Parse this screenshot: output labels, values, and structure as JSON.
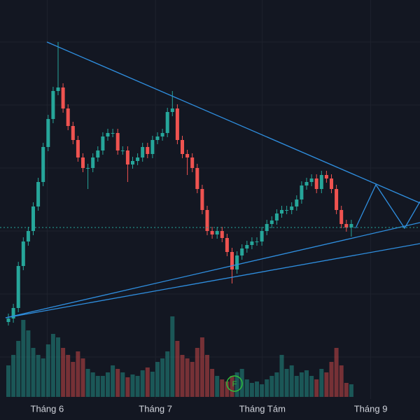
{
  "chart_data": {
    "type": "candlestick",
    "open": [
      140,
      145,
      160,
      220,
      255,
      270,
      305,
      340,
      390,
      430,
      470,
      475,
      445,
      420,
      400,
      375,
      360,
      360,
      375,
      385,
      405,
      410,
      410,
      385,
      385,
      365,
      370,
      375,
      390,
      380,
      400,
      405,
      410,
      440,
      445,
      400,
      380,
      375,
      360,
      330,
      300,
      270,
      265,
      270,
      260,
      240,
      215,
      235,
      245,
      250,
      255,
      255,
      270,
      280,
      285,
      295,
      300,
      300,
      305,
      315,
      335,
      340,
      345,
      330,
      350,
      345,
      330,
      300,
      280,
      275
    ],
    "high": [
      152,
      166,
      226,
      261,
      276,
      311,
      346,
      396,
      436,
      476,
      540,
      481,
      451,
      426,
      406,
      381,
      366,
      381,
      391,
      411,
      416,
      416,
      416,
      391,
      391,
      376,
      381,
      396,
      396,
      406,
      411,
      416,
      446,
      470,
      451,
      406,
      386,
      381,
      366,
      336,
      306,
      276,
      276,
      276,
      266,
      246,
      241,
      251,
      256,
      261,
      261,
      276,
      286,
      291,
      301,
      306,
      306,
      311,
      321,
      341,
      346,
      351,
      351,
      356,
      356,
      351,
      336,
      306,
      286,
      286
    ],
    "low": [
      135,
      139,
      154,
      214,
      249,
      264,
      299,
      334,
      384,
      424,
      464,
      439,
      414,
      394,
      369,
      354,
      330,
      354,
      369,
      379,
      399,
      404,
      379,
      379,
      340,
      359,
      364,
      369,
      374,
      374,
      394,
      399,
      404,
      434,
      394,
      374,
      350,
      354,
      324,
      294,
      264,
      259,
      259,
      254,
      234,
      195,
      209,
      229,
      239,
      244,
      249,
      249,
      264,
      274,
      279,
      289,
      294,
      294,
      299,
      309,
      329,
      334,
      324,
      324,
      339,
      324,
      294,
      274,
      269,
      262
    ],
    "close": [
      145,
      160,
      220,
      255,
      270,
      305,
      340,
      390,
      430,
      470,
      475,
      445,
      420,
      400,
      375,
      360,
      360,
      375,
      385,
      405,
      410,
      410,
      385,
      385,
      365,
      370,
      375,
      390,
      380,
      400,
      405,
      410,
      440,
      445,
      400,
      380,
      375,
      360,
      330,
      300,
      270,
      265,
      270,
      260,
      240,
      215,
      235,
      245,
      250,
      255,
      255,
      270,
      280,
      285,
      295,
      300,
      300,
      305,
      315,
      335,
      340,
      345,
      330,
      350,
      345,
      330,
      300,
      280,
      275,
      280
    ],
    "volume": [
      45,
      60,
      80,
      110,
      95,
      70,
      60,
      55,
      75,
      90,
      85,
      70,
      60,
      50,
      65,
      55,
      40,
      35,
      30,
      30,
      35,
      45,
      40,
      35,
      28,
      32,
      30,
      38,
      42,
      36,
      50,
      55,
      65,
      115,
      80,
      60,
      55,
      50,
      70,
      85,
      60,
      40,
      30,
      25,
      22,
      30,
      35,
      40,
      25,
      20,
      22,
      18,
      25,
      30,
      35,
      60,
      40,
      45,
      30,
      35,
      38,
      30,
      25,
      40,
      35,
      50,
      70,
      45,
      20,
      18
    ],
    "ylim": [
      30,
      600
    ],
    "xticks": [
      {
        "value": 7.8,
        "label": "Tháng 6"
      },
      {
        "value": 29.6,
        "label": "Tháng 7"
      },
      {
        "value": 51.1,
        "label": "Tháng Tám"
      },
      {
        "value": 72.9,
        "label": "Tháng 9"
      }
    ],
    "up_color": "#26a69a",
    "down_color": "#ef5350",
    "marker_label": "F"
  }
}
